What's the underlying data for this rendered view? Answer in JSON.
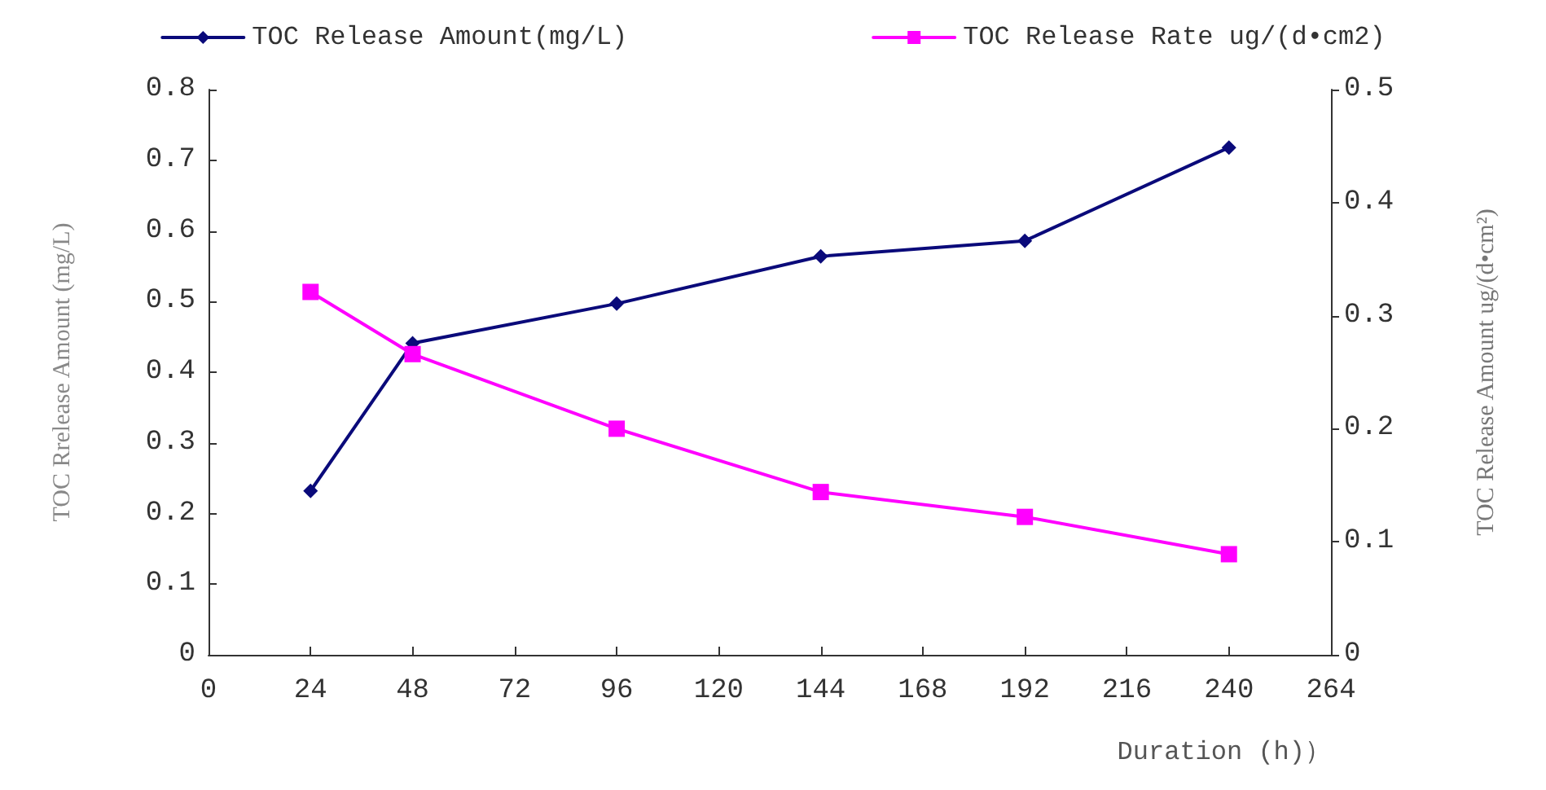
{
  "chart_data": {
    "type": "line",
    "x": [
      24,
      48,
      96,
      144,
      192,
      240
    ],
    "series": [
      {
        "name": "TOC Release Amount(mg/L)",
        "color": "#0a0a7a",
        "marker": "diamond",
        "values": [
          0.232,
          0.441,
          0.497,
          0.564,
          0.586,
          0.718
        ]
      },
      {
        "name": "TOC Release Rate ug/(d•cm2)",
        "color": "#ff00ff",
        "marker": "square",
        "axis": "y2",
        "values": [
          0.321,
          0.266,
          0.2,
          0.144,
          0.122,
          0.089
        ]
      }
    ],
    "xlabel": "Duration (h)）",
    "ylabel": "TOC Rrelease Amount (mg/L)",
    "y2label": "TOC Release Amount ug/(d•cm²)",
    "xlim": [
      0,
      264
    ],
    "xticks": [
      0,
      24,
      48,
      72,
      96,
      120,
      144,
      168,
      192,
      216,
      240,
      264
    ],
    "ylim": [
      0,
      0.8
    ],
    "yticks": [
      0,
      0.1,
      0.2,
      0.3,
      0.4,
      0.5,
      0.6,
      0.7,
      0.8
    ],
    "y2lim": [
      0,
      0.5
    ],
    "y2ticks": [
      0,
      0.1,
      0.2,
      0.3,
      0.4,
      0.5
    ],
    "grid": false,
    "legend": "top",
    "line_style": "solid"
  }
}
